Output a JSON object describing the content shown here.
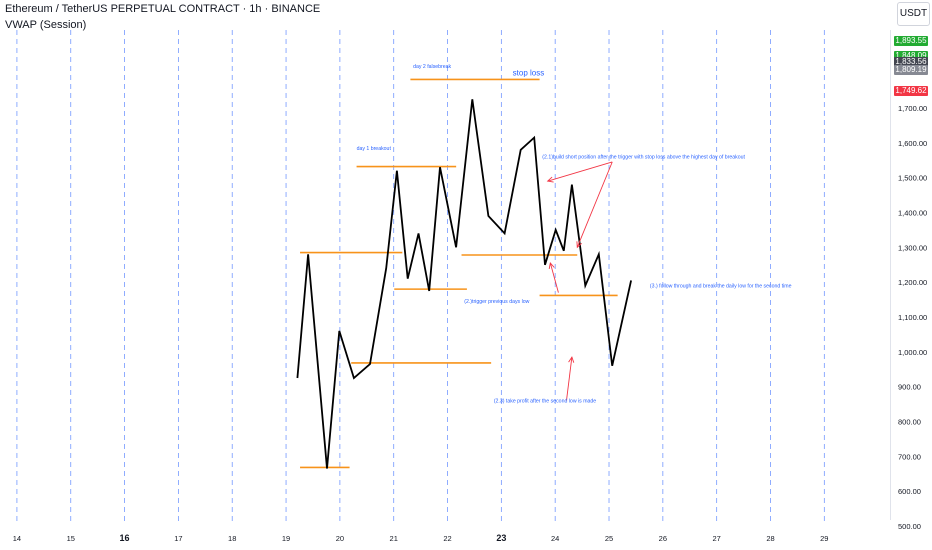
{
  "header": {
    "symbol_title": "Ethereum / TetherUS PERPETUAL CONTRACT · 1h · BINANCE",
    "indicator_label": "VWAP (Session)",
    "currency": "USDT"
  },
  "price_axis": {
    "ticks": [
      "1,700.00",
      "1,600.00",
      "1,500.00",
      "1,400.00",
      "1,300.00",
      "1,200.00",
      "1,100.00",
      "1,000.00",
      "900.00",
      "800.00",
      "700.00",
      "600.00",
      "500.00"
    ],
    "tick_values": [
      1700,
      1600,
      1500,
      1400,
      1300,
      1200,
      1100,
      1000,
      900,
      800,
      700,
      600,
      500
    ],
    "tags": [
      {
        "label": "1,893.55",
        "value": 1893.55,
        "color": "#22ab32"
      },
      {
        "label": "1,848.09",
        "value": 1848.09,
        "color": "#22ab32"
      },
      {
        "label": "1,833.56",
        "value": 1833.56,
        "color": "#434651"
      },
      {
        "label": "1,809.19",
        "value": 1809.19,
        "color": "#868993"
      },
      {
        "label": "1,749.62",
        "value": 1749.62,
        "color": "#f23645"
      }
    ]
  },
  "time_axis": {
    "ticks": [
      "14",
      "15",
      "16",
      "17",
      "18",
      "19",
      "20",
      "21",
      "22",
      "23",
      "24",
      "25",
      "26",
      "27",
      "28",
      "29"
    ],
    "tick_days": [
      14,
      15,
      16,
      17,
      18,
      19,
      20,
      21,
      22,
      23,
      24,
      25,
      26,
      27,
      28,
      29
    ],
    "bold_days": [
      16,
      23
    ]
  },
  "chart_data": {
    "type": "line",
    "x_unit": "day",
    "y_unit": "USDT",
    "ylim": [
      500,
      1900
    ],
    "xlim": [
      13.5,
      29.7
    ],
    "grid": "vertical dashed daily separators",
    "series": [
      {
        "color": "#000000",
        "x": [
          18.95,
          19.15,
          19.5,
          19.73,
          20.0,
          20.3,
          20.6,
          20.8,
          21.0,
          21.2,
          21.4,
          21.6,
          21.9,
          22.2,
          22.5,
          22.8,
          23.1,
          23.35,
          23.55,
          23.75,
          23.9,
          24.05,
          24.3,
          24.55,
          24.8,
          25.15
        ],
        "values": [
          925,
          1280,
          665,
          1060,
          925,
          965,
          1240,
          1520,
          1210,
          1340,
          1175,
          1530,
          1300,
          1725,
          1390,
          1340,
          1580,
          1615,
          1250,
          1350,
          1290,
          1480,
          1190,
          1280,
          960,
          1205
        ]
      }
    ],
    "levels": [
      {
        "color": "#f7931a",
        "x1": 19.0,
        "x2": 20.9,
        "y": 1285
      },
      {
        "color": "#f7931a",
        "x1": 19.0,
        "x2": 19.92,
        "y": 668
      },
      {
        "color": "#f7931a",
        "x1": 19.95,
        "x2": 22.55,
        "y": 968
      },
      {
        "color": "#f7931a",
        "x1": 20.05,
        "x2": 21.9,
        "y": 1532
      },
      {
        "color": "#f7931a",
        "x1": 20.75,
        "x2": 22.1,
        "y": 1180
      },
      {
        "color": "#f7931a",
        "x1": 21.05,
        "x2": 23.45,
        "y": 1782
      },
      {
        "color": "#f7931a",
        "x1": 22.0,
        "x2": 24.15,
        "y": 1278
      },
      {
        "color": "#f7931a",
        "x1": 23.45,
        "x2": 24.9,
        "y": 1162
      }
    ],
    "annotations": [
      {
        "text": "day 2 falsebreak",
        "x": 21.1,
        "y": 1815,
        "color": "#2962ff"
      },
      {
        "text": "stop loss",
        "x": 22.95,
        "y": 1793,
        "color": "#2962ff"
      },
      {
        "text": "day 1 breakout",
        "x": 20.05,
        "y": 1580,
        "color": "#2962ff"
      },
      {
        "text": "(2.1)build short position after the trigger with stop loss above the highest day of breakout",
        "x": 23.5,
        "y": 1555,
        "color": "#2962ff"
      },
      {
        "text": "(2.)trigger previous days low",
        "x": 22.05,
        "y": 1140,
        "color": "#2962ff"
      },
      {
        "text": "(3.) follow through and break the daily low for the second time",
        "x": 25.5,
        "y": 1185,
        "color": "#2962ff"
      },
      {
        "text": "(2.3) take profit after the second low is made",
        "x": 22.6,
        "y": 855,
        "color": "#2962ff"
      }
    ],
    "arrows": [
      {
        "x1": 24.8,
        "y1": 1545,
        "x2": 23.6,
        "y2": 1490,
        "color": "#f23645"
      },
      {
        "x1": 24.8,
        "y1": 1545,
        "x2": 24.15,
        "y2": 1300,
        "color": "#f23645"
      },
      {
        "x1": 23.8,
        "y1": 1170,
        "x2": 23.65,
        "y2": 1255,
        "color": "#f23645"
      },
      {
        "x1": 23.95,
        "y1": 860,
        "x2": 24.05,
        "y2": 985,
        "color": "#f23645"
      }
    ]
  }
}
